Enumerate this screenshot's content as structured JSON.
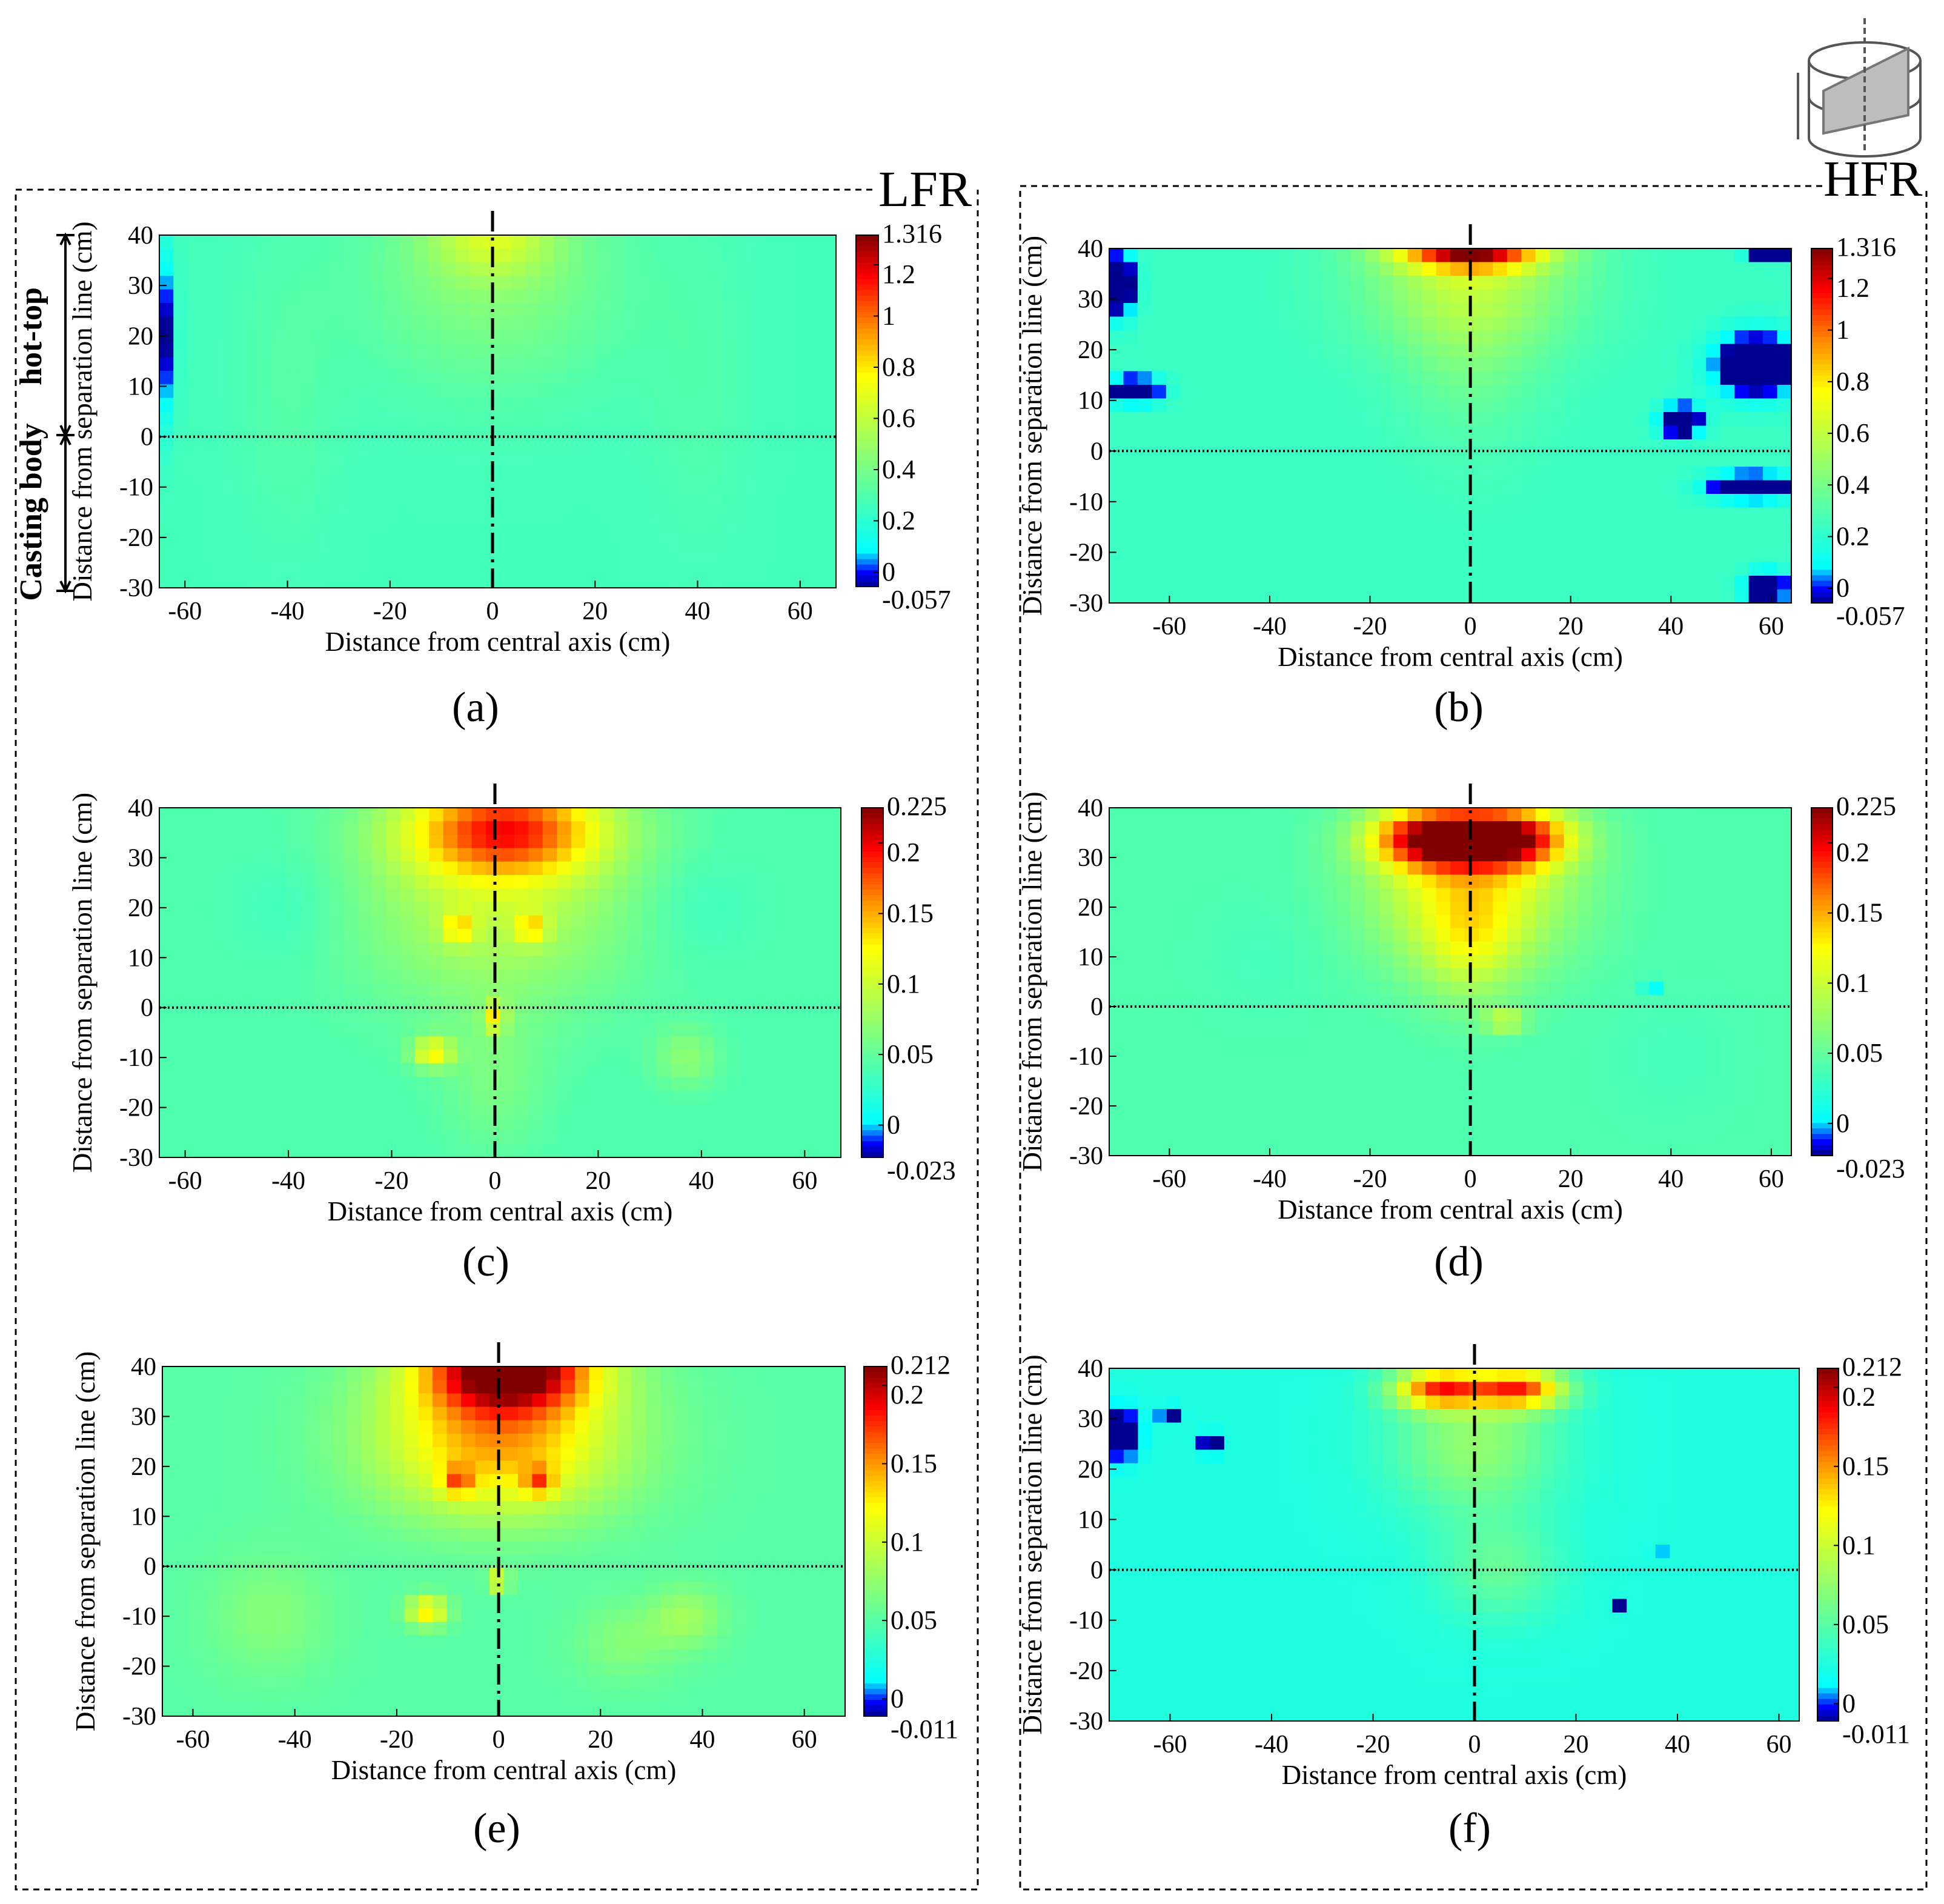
{
  "figure": {
    "left_group_label": "LFR",
    "right_group_label": "HFR",
    "zone_labels": {
      "hot_top": "hot-top",
      "casting_body": "Casting body"
    }
  },
  "colors": {
    "colormap": [
      "#00008f",
      "#0000ff",
      "#00ffff",
      "#7fff7f",
      "#ffff00",
      "#ff7f00",
      "#ff0000",
      "#800000"
    ],
    "cmap_positions": [
      0,
      0.04,
      0.1,
      0.35,
      0.6,
      0.75,
      0.88,
      1.0
    ],
    "frame": "#000000"
  },
  "chart_data": [
    {
      "id": "a",
      "panel_label": "(a)",
      "type": "heatmap",
      "group": "LFR",
      "xlabel": "Distance from central axis (cm)",
      "ylabel": "Distance from separation line (cm)",
      "xlim": [
        -65,
        67
      ],
      "ylim": [
        -30,
        40
      ],
      "xticks": [
        "-60",
        "-40",
        "-20",
        "0",
        "20",
        "40",
        "60"
      ],
      "yticks": [
        "40",
        "30",
        "20",
        "10",
        "0",
        "-10",
        "-20",
        "-30"
      ],
      "clim": [
        -0.057,
        1.316
      ],
      "cbar_ticks": [
        "1.316",
        "1.2",
        "1",
        "0.8",
        "0.6",
        "0.4",
        "0.2",
        "0",
        "-0.057"
      ],
      "cbar_values": [
        1.316,
        1.2,
        1,
        0.8,
        0.6,
        0.4,
        0.2,
        0,
        -0.057
      ],
      "background": 0.26,
      "blobs": [
        [
          0,
          40,
          12,
          8,
          0.26
        ],
        [
          0,
          32,
          25,
          22,
          0.18
        ],
        [
          -40,
          10,
          10,
          30,
          0.05
        ],
        [
          40,
          10,
          10,
          30,
          0.04
        ],
        [
          -66,
          20,
          3,
          16,
          -0.6
        ]
      ],
      "vertical_line_x": 0,
      "separation_line_y": 0
    },
    {
      "id": "b",
      "panel_label": "(b)",
      "type": "heatmap",
      "group": "HFR",
      "xlabel": "Distance from central axis (cm)",
      "ylabel": "Distance from separation line (cm)",
      "xlim": [
        -72,
        64
      ],
      "ylim": [
        -30,
        40
      ],
      "xticks": [
        "-60",
        "-40",
        "-20",
        "0",
        "20",
        "40",
        "60"
      ],
      "yticks": [
        "40",
        "30",
        "20",
        "10",
        "0",
        "-10",
        "-20",
        "-30"
      ],
      "clim": [
        -0.057,
        1.316
      ],
      "cbar_ticks": [
        "1.316",
        "1.2",
        "1",
        "0.8",
        "0.6",
        "0.4",
        "0.2",
        "0",
        "-0.057"
      ],
      "cbar_values": [
        1.316,
        1.2,
        1,
        0.8,
        0.6,
        0.4,
        0.2,
        0,
        -0.057
      ],
      "background": 0.24,
      "blobs": [
        [
          0,
          40,
          14,
          4,
          0.9
        ],
        [
          0,
          34,
          22,
          14,
          0.28
        ],
        [
          0,
          20,
          14,
          20,
          0.12
        ],
        [
          -70,
          33,
          3,
          6,
          -0.6
        ],
        [
          -67,
          12,
          5,
          2.5,
          -0.6
        ],
        [
          42,
          6,
          4,
          3,
          -0.6
        ],
        [
          57,
          17,
          8,
          6,
          -0.6
        ],
        [
          60,
          39,
          4,
          1.5,
          -0.6
        ],
        [
          56,
          -7,
          8,
          2.5,
          -0.6
        ],
        [
          59,
          -27,
          4,
          3,
          -0.6
        ]
      ],
      "vertical_line_x": 0,
      "separation_line_y": 0
    },
    {
      "id": "c",
      "panel_label": "(c)",
      "type": "heatmap",
      "group": "LFR",
      "xlabel": "Distance from central axis (cm)",
      "ylabel": "Distance from separation line (cm)",
      "xlim": [
        -65,
        67
      ],
      "ylim": [
        -30,
        40
      ],
      "xticks": [
        "-60",
        "-40",
        "-20",
        "0",
        "20",
        "40",
        "60"
      ],
      "yticks": [
        "40",
        "30",
        "20",
        "10",
        "0",
        "-10",
        "-20",
        "-30"
      ],
      "clim": [
        -0.023,
        0.225
      ],
      "cbar_ticks": [
        "0.225",
        "0.2",
        "0.15",
        "0.1",
        "0.05",
        "0",
        "-0.023"
      ],
      "cbar_values": [
        0.225,
        0.2,
        0.15,
        0.1,
        0.05,
        0,
        -0.023
      ],
      "background": 0.04,
      "blobs": [
        [
          2,
          36,
          20,
          10,
          0.13
        ],
        [
          0,
          20,
          26,
          20,
          0.05
        ],
        [
          -7,
          16,
          3,
          3,
          0.06
        ],
        [
          7,
          16,
          3,
          3,
          0.06
        ],
        [
          -12,
          -9,
          4,
          3,
          0.08
        ],
        [
          0,
          -2,
          2,
          3,
          0.07
        ],
        [
          37,
          -10,
          6,
          6,
          0.03
        ],
        [
          0,
          -15,
          10,
          14,
          0.02
        ],
        [
          -40,
          20,
          10,
          10,
          -0.01
        ],
        [
          40,
          20,
          10,
          10,
          -0.01
        ]
      ],
      "vertical_line_x": 0,
      "separation_line_y": 0
    },
    {
      "id": "d",
      "panel_label": "(d)",
      "type": "heatmap",
      "group": "HFR",
      "xlabel": "Distance from central axis (cm)",
      "ylabel": "Distance from separation line (cm)",
      "xlim": [
        -72,
        64
      ],
      "ylim": [
        -30,
        40
      ],
      "xticks": [
        "-60",
        "-40",
        "-20",
        "0",
        "20",
        "40",
        "60"
      ],
      "yticks": [
        "40",
        "30",
        "20",
        "10",
        "0",
        "-10",
        "-20",
        "-30"
      ],
      "clim": [
        -0.023,
        0.225
      ],
      "cbar_ticks": [
        "0.225",
        "0.2",
        "0.15",
        "0.1",
        "0.05",
        "0",
        "-0.023"
      ],
      "cbar_values": [
        0.225,
        0.2,
        0.15,
        0.1,
        0.05,
        0,
        -0.023
      ],
      "background": 0.04,
      "blobs": [
        [
          -8,
          34,
          12,
          6,
          0.15
        ],
        [
          8,
          34,
          12,
          6,
          0.15
        ],
        [
          0,
          24,
          20,
          16,
          0.08
        ],
        [
          0,
          12,
          10,
          12,
          0.04
        ],
        [
          7,
          -3,
          4,
          2,
          0.06
        ],
        [
          36,
          4,
          1.5,
          1.5,
          -0.06
        ],
        [
          -40,
          10,
          12,
          12,
          -0.005
        ],
        [
          40,
          -10,
          12,
          12,
          -0.005
        ]
      ],
      "vertical_line_x": 0,
      "separation_line_y": 0
    },
    {
      "id": "e",
      "panel_label": "(e)",
      "type": "heatmap",
      "group": "LFR",
      "xlabel": "Distance from central axis (cm)",
      "ylabel": "Distance from separation line (cm)",
      "xlim": [
        -66,
        68
      ],
      "ylim": [
        -30,
        40
      ],
      "xticks": [
        "-60",
        "-40",
        "-20",
        "0",
        "20",
        "40",
        "60"
      ],
      "yticks": [
        "40",
        "30",
        "20",
        "10",
        "0",
        "-10",
        "-20",
        "-30"
      ],
      "clim": [
        -0.011,
        0.212
      ],
      "cbar_ticks": [
        "0.212",
        "0.2",
        "0.15",
        "0.1",
        "0.05",
        "0",
        "-0.011"
      ],
      "cbar_values": [
        0.212,
        0.2,
        0.15,
        0.1,
        0.05,
        0,
        -0.011
      ],
      "background": 0.05,
      "blobs": [
        [
          2,
          40,
          16,
          8,
          0.15
        ],
        [
          0,
          30,
          24,
          14,
          0.08
        ],
        [
          0,
          18,
          24,
          12,
          0.04
        ],
        [
          -8,
          17,
          3,
          3,
          0.06
        ],
        [
          8,
          17,
          3,
          3,
          0.06
        ],
        [
          -14,
          -9,
          4,
          3,
          0.08
        ],
        [
          0,
          -3,
          2,
          2,
          0.07
        ],
        [
          37,
          -10,
          7,
          6,
          0.03
        ],
        [
          -45,
          -10,
          12,
          12,
          0.02
        ],
        [
          25,
          -15,
          10,
          8,
          0.02
        ]
      ],
      "vertical_line_x": 0,
      "separation_line_y": 0
    },
    {
      "id": "f",
      "panel_label": "(f)",
      "type": "heatmap",
      "group": "HFR",
      "xlabel": "Distance from central axis (cm)",
      "ylabel": "Distance from separation line (cm)",
      "xlim": [
        -72,
        64
      ],
      "ylim": [
        -30,
        40
      ],
      "xticks": [
        "-60",
        "-40",
        "-20",
        "0",
        "20",
        "40",
        "60"
      ],
      "yticks": [
        "40",
        "30",
        "20",
        "10",
        "0",
        "-10",
        "-20",
        "-30"
      ],
      "clim": [
        -0.011,
        0.212
      ],
      "cbar_ticks": [
        "0.212",
        "0.2",
        "0.15",
        "0.1",
        "0.05",
        "0",
        "-0.011"
      ],
      "cbar_values": [
        0.212,
        0.2,
        0.15,
        0.1,
        0.05,
        0,
        -0.011
      ],
      "background": 0.025,
      "blobs": [
        [
          -7,
          36,
          9,
          4,
          0.13
        ],
        [
          9,
          36,
          9,
          4,
          0.13
        ],
        [
          0,
          25,
          16,
          14,
          0.05
        ],
        [
          5,
          0,
          12,
          10,
          0.03
        ],
        [
          -70,
          27,
          4,
          5,
          -0.06
        ],
        [
          -52,
          25,
          2,
          2,
          -0.06
        ],
        [
          -60,
          31,
          2,
          1.5,
          -0.06
        ],
        [
          36,
          4,
          1,
          1,
          -0.06
        ],
        [
          28,
          -7,
          1,
          1,
          -0.06
        ]
      ],
      "vertical_line_x": 0,
      "separation_line_y": 0
    }
  ]
}
